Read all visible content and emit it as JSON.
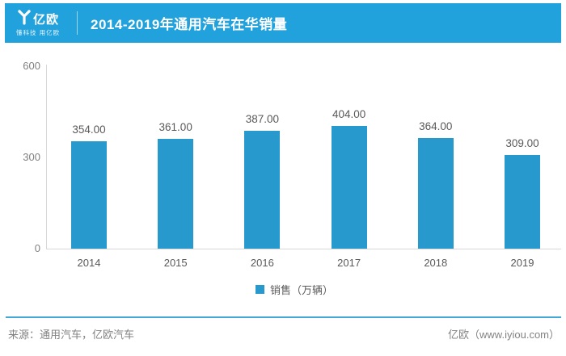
{
  "header": {
    "brand": "亿欧",
    "slogan": "懂科技 用亿欧",
    "title": "2014-2019年通用汽车在华销量"
  },
  "chart_data": {
    "type": "bar",
    "title": "2014-2019年通用汽车在华销量",
    "categories": [
      "2014",
      "2015",
      "2016",
      "2017",
      "2018",
      "2019"
    ],
    "series": [
      {
        "name": "销售（万辆）",
        "values": [
          354,
          361,
          387,
          404,
          364,
          309
        ]
      }
    ],
    "value_label_decimals": 2,
    "xlabel": "",
    "ylabel": "",
    "ylim": [
      0,
      600
    ],
    "yticks": [
      0,
      300,
      600
    ],
    "grid": false,
    "legend_position": "bottom",
    "bar_color": "#2899cc"
  },
  "legend": {
    "label": "销售（万辆）",
    "swatch_color": "#2899cc"
  },
  "footer": {
    "source": "来源：通用汽车，亿欧汽车",
    "brand": "亿欧（www.iyiou.com）"
  },
  "colors": {
    "header_bg": "#22a2dc",
    "bar": "#2899cc",
    "footer_rule": "#43a7d6",
    "axis": "#d8d8d8"
  }
}
